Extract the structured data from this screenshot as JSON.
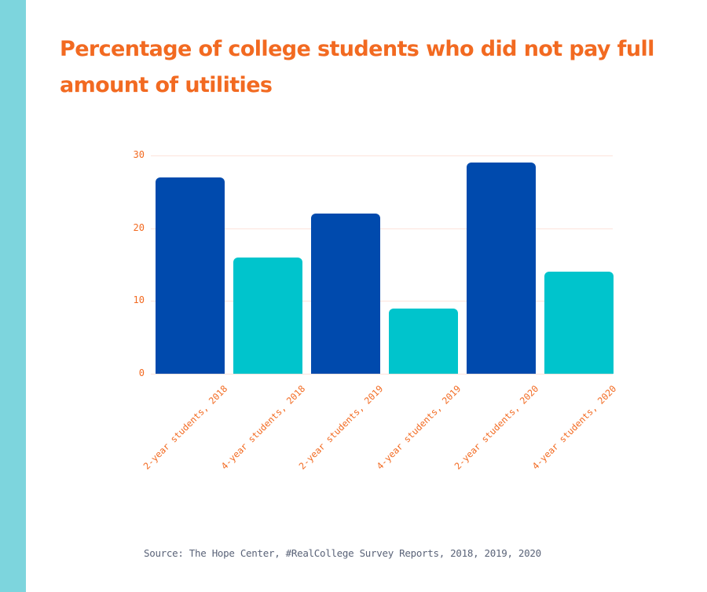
{
  "title": "Percentage of college students who did not pay full amount of utilities",
  "source": "Source: The Hope Center, #RealCollege Survey Reports, 2018, 2019, 2020",
  "colors": {
    "title": "#f26a21",
    "two_year": "#004aad",
    "four_year": "#00c4cc",
    "side_bar": "#7dd5dd",
    "gridline": "#fde3dc",
    "source_text": "#5a6378"
  },
  "chart_data": {
    "type": "bar",
    "title": "Percentage of college students who did not pay full amount of utilities",
    "xlabel": "",
    "ylabel": "",
    "categories": [
      "2-year students, 2018",
      "4-year students, 2018",
      "2-year students, 2019",
      "4-year students, 2019",
      "2-year students, 2020",
      "4-year students, 2020"
    ],
    "values": [
      27,
      16,
      22,
      9,
      29,
      14
    ],
    "bar_colors": [
      "#004aad",
      "#00c4cc",
      "#004aad",
      "#00c4cc",
      "#004aad",
      "#00c4cc"
    ],
    "yticks": [
      0,
      10,
      20,
      30
    ],
    "ylim": [
      0,
      30
    ],
    "grid": true,
    "legend": null,
    "source": "Source: The Hope Center, #RealCollege Survey Reports, 2018, 2019, 2020"
  }
}
